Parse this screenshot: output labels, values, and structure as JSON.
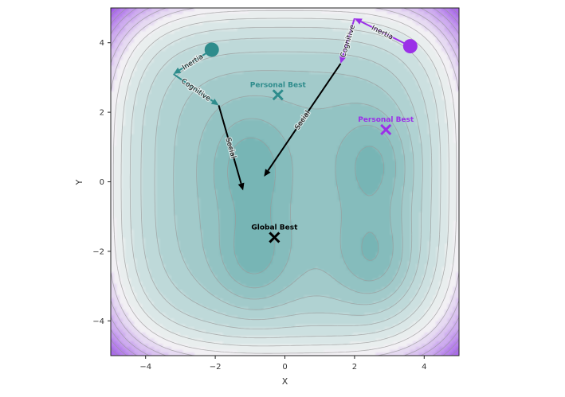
{
  "chart_data": {
    "type": "contour",
    "xlabel": "X",
    "ylabel": "Y",
    "xlim": [
      -5,
      5
    ],
    "ylim": [
      -5,
      5
    ],
    "xticks": [
      -4,
      -2,
      0,
      2,
      4
    ],
    "yticks": [
      -4,
      -2,
      0,
      2,
      4
    ],
    "grid": false,
    "colors": {
      "low": "#77b5b5",
      "mid": "#f4f4f4",
      "high": "#9e55e8",
      "line": "#9a9a9a",
      "teal": "#2e8c8c",
      "purple": "#9b30e8",
      "black": "#000000"
    },
    "minima": [
      {
        "x": -1.0,
        "y": 0.4
      },
      {
        "x": -0.9,
        "y": -2.2
      },
      {
        "x": 2.6,
        "y": 0.5
      },
      {
        "x": 2.6,
        "y": -2.2
      }
    ],
    "particles": [
      {
        "name": "teal-particle",
        "x": -2.1,
        "y": 3.8,
        "color": "teal"
      },
      {
        "name": "purple-particle",
        "x": 3.6,
        "y": 3.9,
        "color": "purple"
      }
    ],
    "markers": [
      {
        "name": "teal-personal-best",
        "label": "Personal Best",
        "x": -0.2,
        "y": 2.5,
        "color": "teal"
      },
      {
        "name": "purple-personal-best",
        "label": "Personal Best",
        "x": 2.9,
        "y": 1.5,
        "color": "purple"
      },
      {
        "name": "global-best",
        "label": "Global  Best",
        "x": -0.3,
        "y": -1.6,
        "color": "black"
      }
    ],
    "vectors": [
      {
        "name": "teal-inertia",
        "label": "Inertia",
        "from": [
          -2.1,
          3.8
        ],
        "to": [
          -3.2,
          3.1
        ],
        "color": "teal"
      },
      {
        "name": "teal-cognitive",
        "label": "Cognitive",
        "from": [
          -3.2,
          3.1
        ],
        "to": [
          -1.9,
          2.2
        ],
        "color": "teal"
      },
      {
        "name": "teal-social",
        "label": "Social",
        "from": [
          -1.9,
          2.2
        ],
        "to": [
          -1.2,
          -0.25
        ],
        "color": "black"
      },
      {
        "name": "purple-inertia",
        "label": "Inertia",
        "from": [
          3.6,
          3.9
        ],
        "to": [
          2.0,
          4.7
        ],
        "color": "purple"
      },
      {
        "name": "purple-cognitive",
        "label": "Cognitive",
        "from": [
          2.0,
          4.7
        ],
        "to": [
          1.6,
          3.4
        ],
        "color": "purple"
      },
      {
        "name": "purple-social",
        "label": "Social",
        "from": [
          1.6,
          3.4
        ],
        "to": [
          -0.6,
          0.15
        ],
        "color": "black"
      }
    ]
  }
}
